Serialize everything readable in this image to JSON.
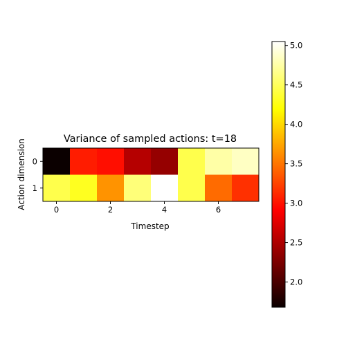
{
  "chart_data": {
    "type": "heatmap",
    "title": "Variance of sampled actions: t=18",
    "xlabel": "Timestep",
    "ylabel": "Action dimension",
    "x_ticks": [
      "0",
      "2",
      "4",
      "6"
    ],
    "y_ticks": [
      "0",
      "1"
    ],
    "x": [
      0,
      1,
      2,
      3,
      4,
      5,
      6,
      7
    ],
    "y": [
      0,
      1
    ],
    "values": [
      [
        1.68,
        3.05,
        2.98,
        2.5,
        2.35,
        4.45,
        4.75,
        4.85
      ],
      [
        4.45,
        4.3,
        3.65,
        4.6,
        5.05,
        4.45,
        3.45,
        3.15
      ]
    ],
    "colormap": "hot",
    "colorbar": {
      "range": [
        1.68,
        5.05
      ],
      "ticks": [
        "2.0",
        "2.5",
        "3.0",
        "3.5",
        "4.0",
        "4.5",
        "5.0"
      ]
    },
    "grid": false
  }
}
